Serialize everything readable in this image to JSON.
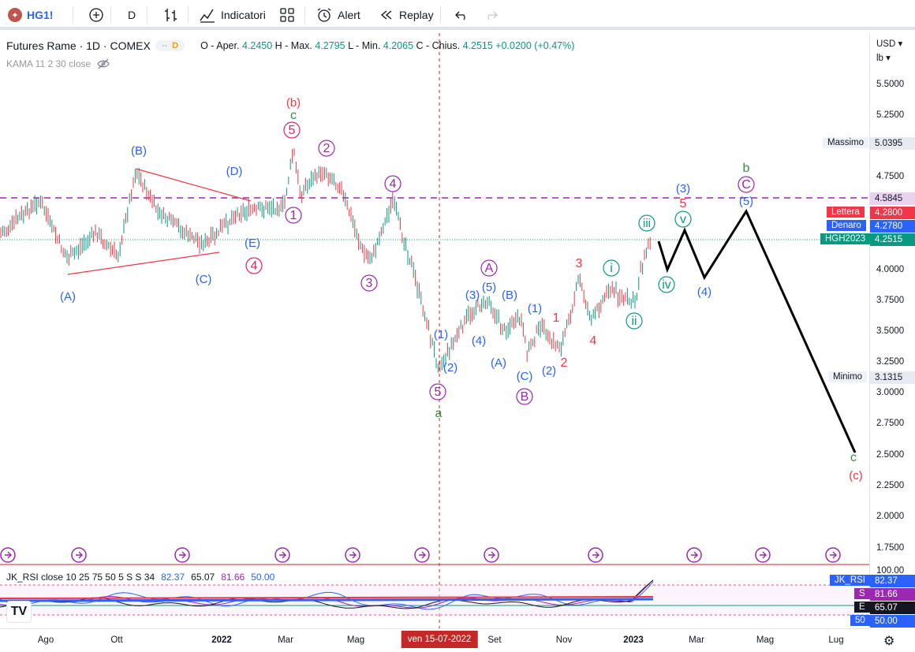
{
  "toolbar": {
    "symbol": "HG1!",
    "interval": "D",
    "indicators_label": "Indicatori",
    "alert_label": "Alert",
    "replay_label": "Replay"
  },
  "legend": {
    "title": "Futures Rame · 1D · COMEX",
    "pill_badge": "D",
    "open_label": "O - Aper.",
    "open": "4.2450",
    "high_label": "H - Max.",
    "high": "4.2795",
    "low_label": "L - Min.",
    "low": "4.2065",
    "close_label": "C - Chius.",
    "close": "4.2515",
    "change": "+0.0200 (+0.47%)",
    "indicator": "KAMA 11 2 30 close"
  },
  "rsi_legend": {
    "name": "JK_RSI close 10 25 75 50 5 S S 34",
    "v1": "82.37",
    "v2": "65.07",
    "v3": "81.66",
    "v4": "50.00"
  },
  "price_axis": {
    "currency": "USD",
    "unit": "lb",
    "ticks": [
      "5.5000",
      "5.2500",
      "4.7500",
      "4.0000",
      "3.7500",
      "3.5000",
      "3.2500",
      "3.0000",
      "2.7500",
      "2.5000",
      "2.2500",
      "2.0000",
      "1.7500"
    ],
    "rsi_top": "100.00",
    "tags": {
      "massimo_label": "Massimo",
      "massimo": "5.0395",
      "level": "4.5845",
      "lettera_label": "Lettera",
      "lettera": "4.2800",
      "denaro_label": "Denaro",
      "denaro": "4.2780",
      "contract_label": "HGH2023",
      "contract": "4.2515",
      "minimo_label": "Minimo",
      "minimo": "3.1315",
      "rsi_label": "JK_RSI",
      "rsi": "82.37",
      "s_label": "S",
      "s": "81.66",
      "e_label": "E",
      "e": "65.07",
      "l50_label": "50",
      "l50": "50.00"
    }
  },
  "time_axis": {
    "ticks": [
      "Ago",
      "Ott",
      "2022",
      "Mar",
      "Mag",
      "Set",
      "Nov",
      "2023",
      "Mar",
      "Mag",
      "Lug"
    ],
    "crosshair_date": "ven 15-07-2022"
  },
  "colors": {
    "blue": "#2962ff",
    "red": "#f23645",
    "purple": "#9c27b0",
    "pink": "#e91e63",
    "green": "#089981",
    "dark_green": "#388e3c",
    "teal": "#089981"
  },
  "wave_labels": [
    {
      "t": "(A)",
      "c": "blue"
    },
    {
      "t": "(B)",
      "c": "blue"
    },
    {
      "t": "(C)",
      "c": "blue"
    },
    {
      "t": "(D)",
      "c": "blue"
    },
    {
      "t": "(E)",
      "c": "blue"
    },
    {
      "t": "(b)",
      "c": "red"
    },
    {
      "t": "c",
      "c": "dark_green"
    },
    {
      "t": "5",
      "c": "pink"
    },
    {
      "t": "2",
      "c": "purple"
    },
    {
      "t": "1",
      "c": "purple"
    },
    {
      "t": "4",
      "c": "pink"
    },
    {
      "t": "4",
      "c": "purple"
    },
    {
      "t": "3",
      "c": "purple"
    },
    {
      "t": "5",
      "c": "purple"
    },
    {
      "t": "a",
      "c": "dark_green"
    },
    {
      "t": "(1)",
      "c": "blue"
    },
    {
      "t": "(2)",
      "c": "blue"
    },
    {
      "t": "(3)",
      "c": "blue"
    },
    {
      "t": "(4)",
      "c": "blue"
    },
    {
      "t": "(5)",
      "c": "blue"
    },
    {
      "t": "A",
      "c": "purple"
    },
    {
      "t": "(B)",
      "c": "blue"
    },
    {
      "t": "(A)",
      "c": "blue"
    },
    {
      "t": "(C)",
      "c": "blue"
    },
    {
      "t": "B",
      "c": "purple"
    },
    {
      "t": "(1)",
      "c": "blue"
    },
    {
      "t": "(2)",
      "c": "blue"
    },
    {
      "t": "1",
      "c": "red"
    },
    {
      "t": "2",
      "c": "red"
    },
    {
      "t": "3",
      "c": "red"
    },
    {
      "t": "4",
      "c": "red"
    },
    {
      "t": "i",
      "c": "teal"
    },
    {
      "t": "ii",
      "c": "teal"
    },
    {
      "t": "iii",
      "c": "teal"
    },
    {
      "t": "iv",
      "c": "teal"
    },
    {
      "t": "v",
      "c": "teal"
    },
    {
      "t": "(3)",
      "c": "blue"
    },
    {
      "t": "5",
      "c": "red"
    },
    {
      "t": "(4)",
      "c": "blue"
    },
    {
      "t": "(5)",
      "c": "blue"
    },
    {
      "t": "C",
      "c": "purple"
    },
    {
      "t": "b",
      "c": "dark_green"
    },
    {
      "t": "c",
      "c": "dark_green"
    },
    {
      "t": "(c)",
      "c": "red"
    }
  ]
}
